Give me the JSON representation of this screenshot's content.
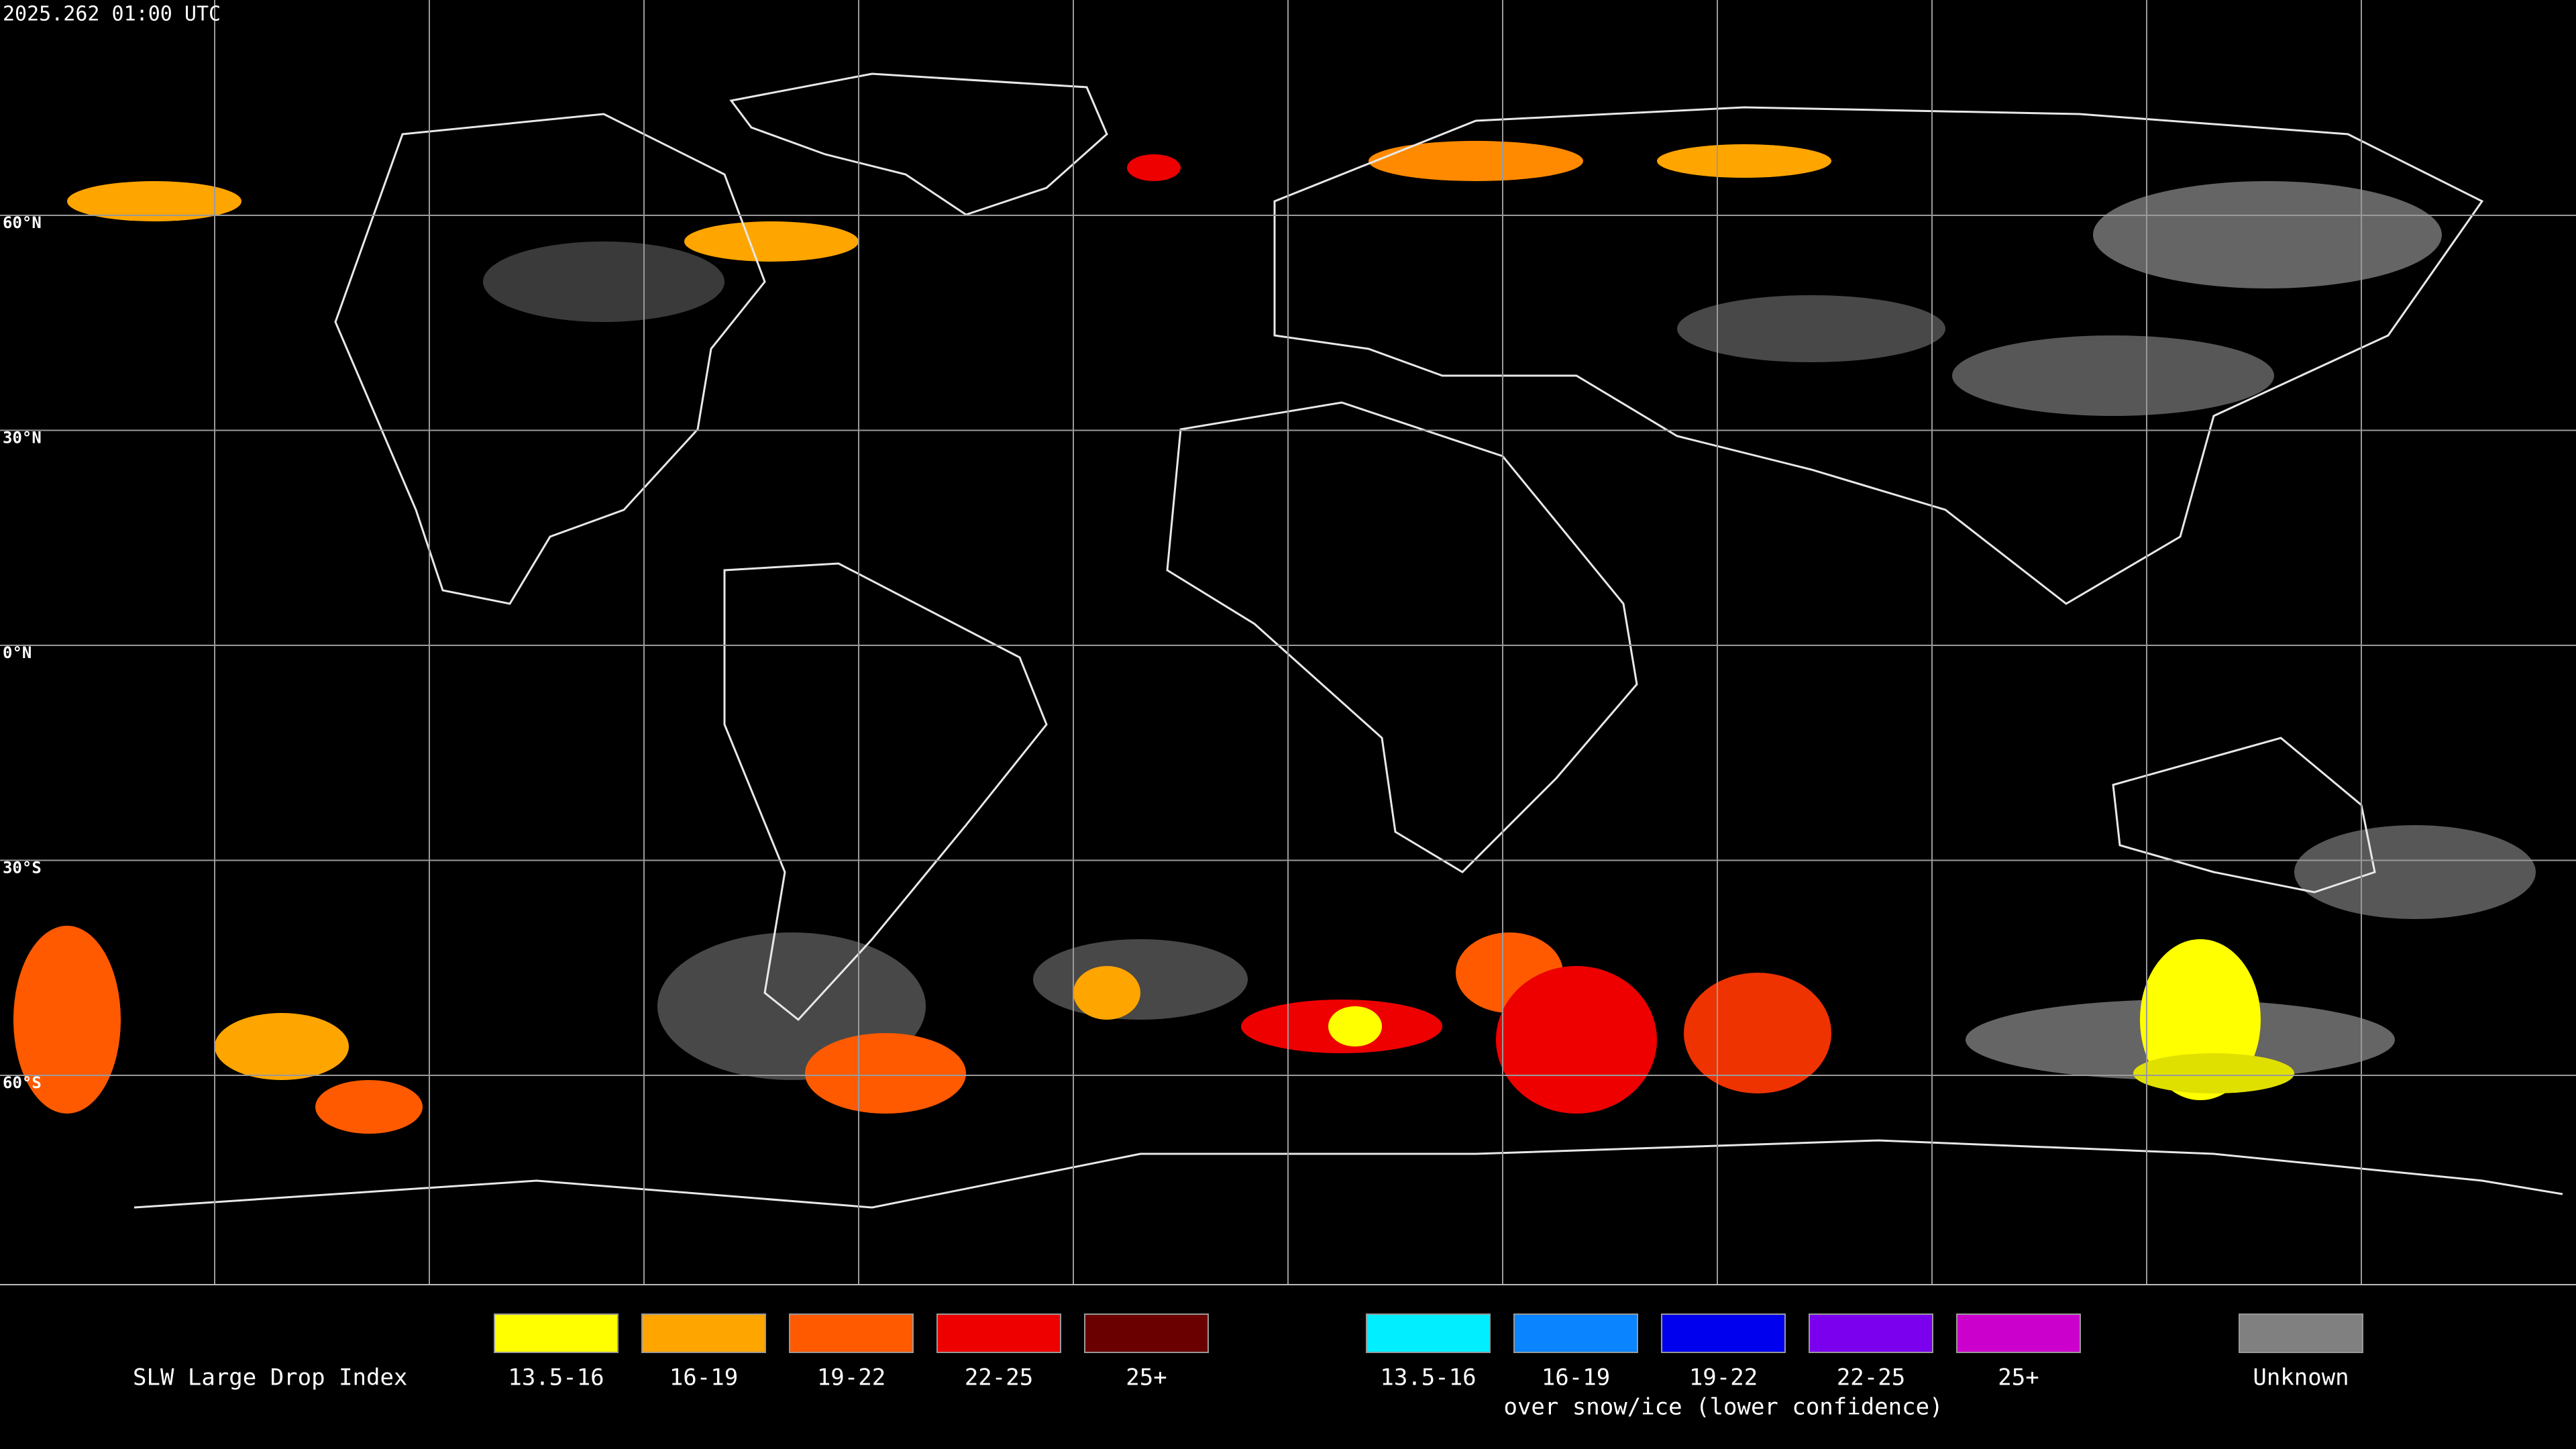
{
  "header": {
    "timestamp": "2025.262 01:00 UTC"
  },
  "map": {
    "latitude_labels": [
      "60°N",
      "30°N",
      "0°N",
      "30°S",
      "60°S"
    ]
  },
  "legend": {
    "title": "SLW Large Drop Index",
    "items": [
      {
        "label": "13.5-16",
        "color": "#ffff00"
      },
      {
        "label": "16-19",
        "color": "#ffa500"
      },
      {
        "label": "19-22",
        "color": "#ff5a00"
      },
      {
        "label": "22-25",
        "color": "#ee0000"
      },
      {
        "label": "25+",
        "color": "#6a0000"
      }
    ],
    "snow_ice_items": [
      {
        "label": "13.5-16",
        "color": "#00eeff"
      },
      {
        "label": "16-19",
        "color": "#0a84ff"
      },
      {
        "label": "19-22",
        "color": "#0000ee"
      },
      {
        "label": "22-25",
        "color": "#7a00ee"
      },
      {
        "label": "25+",
        "color": "#cc00cc"
      }
    ],
    "snow_ice_caption": "over snow/ice (lower confidence)",
    "unknown": {
      "label": "Unknown",
      "color": "#808080"
    }
  }
}
